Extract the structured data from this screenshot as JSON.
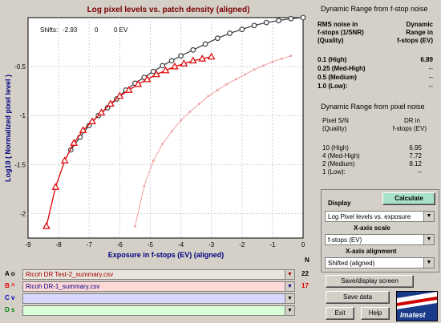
{
  "chart": {
    "title": "Log pixel levels vs. patch density (aligned)",
    "xlabel": "Exposure in f-stops (EV) (aligned)",
    "ylabel": "Log10 ( Normalized pixel level )",
    "shifts_label": "Shifts:",
    "shifts_values": [
      "-2.93",
      "0",
      "0 EV"
    ],
    "x_ticks": [
      "-9",
      "-8",
      "-7",
      "-6",
      "-5",
      "-4",
      "-3",
      "-2",
      "-1",
      "0"
    ],
    "y_ticks": [
      "-0.5",
      "-1",
      "-1.5",
      "-2"
    ]
  },
  "chart_data": {
    "type": "line",
    "title": "Log pixel levels vs. patch density (aligned)",
    "xlabel": "Exposure in f-stops (EV) (aligned)",
    "ylabel": "Log10 ( Normalized pixel level )",
    "xlim": [
      -9,
      0
    ],
    "ylim": [
      -2.25,
      0
    ],
    "grid": true,
    "series": [
      {
        "color": "#404040",
        "marker": "circle",
        "x": [
          -7.6,
          -7.3,
          -7.0,
          -6.7,
          -6.4,
          -6.1,
          -5.8,
          -5.5,
          -5.2,
          -4.9,
          -4.6,
          -4.3,
          -4.0,
          -3.6,
          -3.2,
          -2.8,
          -2.4,
          -2.0,
          -1.6,
          -1.2,
          -0.8,
          -0.4,
          0
        ],
        "y": [
          -1.35,
          -1.22,
          -1.1,
          -1.0,
          -0.92,
          -0.83,
          -0.74,
          -0.67,
          -0.61,
          -0.55,
          -0.49,
          -0.44,
          -0.39,
          -0.33,
          -0.27,
          -0.21,
          -0.16,
          -0.12,
          -0.08,
          -0.05,
          -0.03,
          -0.01,
          0
        ]
      },
      {
        "color": "#e00000",
        "marker": "triangle",
        "x": [
          -8.4,
          -8.1,
          -7.8,
          -7.5,
          -7.2,
          -6.9,
          -6.6,
          -6.3,
          -6.0,
          -5.7,
          -5.4,
          -5.1,
          -4.8,
          -4.5,
          -4.2,
          -3.9,
          -3.6,
          -3.3,
          -3.0
        ],
        "y": [
          -2.13,
          -1.73,
          -1.46,
          -1.28,
          -1.15,
          -1.06,
          -0.97,
          -0.88,
          -0.8,
          -0.74,
          -0.68,
          -0.63,
          -0.58,
          -0.54,
          -0.5,
          -0.47,
          -0.44,
          -0.42,
          -0.4
        ]
      },
      {
        "color": "#f0a0a0",
        "marker": "dot",
        "x": [
          -5.5,
          -5.2,
          -4.9,
          -4.6,
          -4.3,
          -4.0,
          -3.7,
          -3.4,
          -3.1,
          -2.8,
          -2.5,
          -2.2,
          -1.9,
          -1.6,
          -1.3,
          -1.0,
          -0.7,
          -0.4
        ],
        "y": [
          -2.13,
          -1.72,
          -1.46,
          -1.29,
          -1.16,
          -1.05,
          -0.96,
          -0.88,
          -0.8,
          -0.74,
          -0.68,
          -0.63,
          -0.58,
          -0.53,
          -0.49,
          -0.45,
          -0.42,
          -0.39
        ]
      }
    ]
  },
  "fstop_panel": {
    "title": "Dynamic Range from f-stop noise",
    "col1_header": [
      "RMS noise in",
      "f-stops (1/SNR)",
      "(Quality)"
    ],
    "col2_header": [
      "Dynamic",
      "Range in",
      "f-stops (EV)"
    ],
    "rows": [
      {
        "label": "0.1  (High)",
        "value": "6.89"
      },
      {
        "label": "0.25 (Med-High)",
        "value": "--"
      },
      {
        "label": "0.5  (Medium)",
        "value": "--"
      },
      {
        "label": "1.0  (Low):",
        "value": "--"
      }
    ]
  },
  "pixel_panel": {
    "title": "Dynamic Range from pixel noise",
    "col1_header": [
      "Pixel S/N",
      "(Quality)"
    ],
    "col2_header": [
      "DR in",
      "f-stops (EV)"
    ],
    "rows": [
      {
        "label": "10  (High)",
        "value": "6.95"
      },
      {
        "label": "4 (Med-High)",
        "value": "7.72"
      },
      {
        "label": "2  (Medium)",
        "value": "8.12"
      },
      {
        "label": "1  (Low):",
        "value": "--"
      }
    ]
  },
  "controls": {
    "display_label": "Display",
    "calculate_label": "Calculate",
    "display_value": "Log Pixel levels vs. exposure",
    "xscale_label": "X-axis scale",
    "xscale_value": "f-stops (EV)",
    "xalign_label": "X-axis alignment",
    "xalign_value": "Shifted (aligned)"
  },
  "files": {
    "n_header": "N",
    "rows": [
      {
        "letter": "A o",
        "name": "Ricoh DR Test-2_summary.csv",
        "n": "22",
        "bg": "#e8e4dc",
        "letter_color": "#000000",
        "text_color": "#a00000"
      },
      {
        "letter": "B ^",
        "name": "Ricoh DR-1_summary.csv",
        "n": "17",
        "bg": "#ffd8d8",
        "letter_color": "#e00000",
        "text_color": "#000080"
      },
      {
        "letter": "C v",
        "name": "",
        "n": "",
        "bg": "#d8d8ff",
        "letter_color": "#0000c0",
        "text_color": "#000000"
      },
      {
        "letter": "D s",
        "name": "",
        "n": "",
        "bg": "#d8ffd8",
        "letter_color": "#008000",
        "text_color": "#000000"
      }
    ]
  },
  "buttons": {
    "save_display": "Save/display screen",
    "save_data": "Save data",
    "exit": "Exit",
    "help": "Help",
    "logo": "Imatest"
  }
}
